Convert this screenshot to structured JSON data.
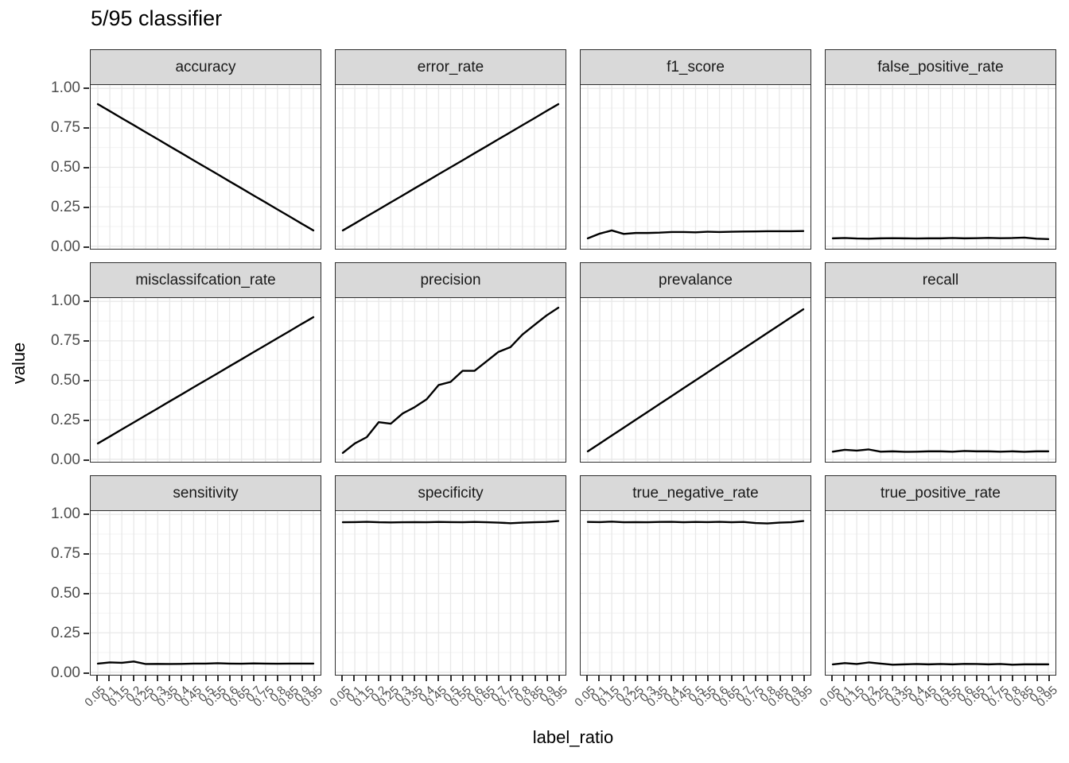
{
  "title": "5/95 classifier",
  "axes": {
    "x_label": "label_ratio",
    "y_label": "value",
    "x_tick_labels": [
      "0.05",
      "0.1",
      "0.15",
      "0.2",
      "0.25",
      "0.3",
      "0.35",
      "0.4",
      "0.45",
      "0.5",
      "0.55",
      "0.6",
      "0.65",
      "0.7",
      "0.75",
      "0.8",
      "0.85",
      "0.9",
      "0.95"
    ],
    "y_tick_labels": [
      "1.00",
      "0.75",
      "0.50",
      "0.25",
      "0.00"
    ],
    "y_tick_values": [
      1,
      0.75,
      0.5,
      0.25,
      0
    ]
  },
  "colors": {
    "strip_fill": "#d9d9d9",
    "panel_border": "#2e2e2e",
    "grid_major": "#e8e8e8",
    "grid_minor": "#f3f3f3",
    "line": "#000000",
    "tick_label": "#4d4d4d",
    "tick_mark": "#2f2f2f"
  },
  "chart_data": {
    "type": "line",
    "title": "5/95 classifier",
    "xlabel": "label_ratio",
    "ylabel": "value",
    "ylim": [
      0,
      1
    ],
    "grid": true,
    "legend": "none",
    "layout": {
      "rows": 3,
      "cols": 4,
      "style": "faceted, shared axes, gray strip headers"
    },
    "x": [
      0.05,
      0.1,
      0.15,
      0.2,
      0.25,
      0.3,
      0.35,
      0.4,
      0.45,
      0.5,
      0.55,
      0.6,
      0.65,
      0.7,
      0.75,
      0.8,
      0.85,
      0.9,
      0.95
    ],
    "y_minor_gridlines": [
      0.125,
      0.375,
      0.625,
      0.875
    ],
    "facets": [
      {
        "label": "accuracy",
        "values": [
          0.9,
          0.856,
          0.811,
          0.767,
          0.722,
          0.678,
          0.633,
          0.589,
          0.544,
          0.5,
          0.456,
          0.411,
          0.367,
          0.322,
          0.278,
          0.233,
          0.189,
          0.144,
          0.1
        ]
      },
      {
        "label": "error_rate",
        "values": [
          0.1,
          0.144,
          0.189,
          0.233,
          0.278,
          0.322,
          0.367,
          0.411,
          0.456,
          0.5,
          0.544,
          0.589,
          0.633,
          0.678,
          0.722,
          0.767,
          0.811,
          0.856,
          0.9
        ]
      },
      {
        "label": "f1_score",
        "values": [
          0.05,
          0.08,
          0.1,
          0.078,
          0.084,
          0.084,
          0.086,
          0.09,
          0.09,
          0.088,
          0.092,
          0.09,
          0.092,
          0.093,
          0.094,
          0.095,
          0.095,
          0.095,
          0.096
        ]
      },
      {
        "label": "false_positive_rate",
        "values": [
          0.05,
          0.052,
          0.049,
          0.048,
          0.05,
          0.051,
          0.05,
          0.049,
          0.05,
          0.05,
          0.052,
          0.05,
          0.051,
          0.053,
          0.051,
          0.052,
          0.055,
          0.048,
          0.045
        ]
      },
      {
        "label": "misclassifcation_rate",
        "values": [
          0.1,
          0.144,
          0.189,
          0.233,
          0.278,
          0.322,
          0.367,
          0.411,
          0.456,
          0.5,
          0.544,
          0.589,
          0.633,
          0.678,
          0.722,
          0.767,
          0.811,
          0.856,
          0.9
        ]
      },
      {
        "label": "precision",
        "values": [
          0.04,
          0.1,
          0.14,
          0.235,
          0.225,
          0.29,
          0.33,
          0.38,
          0.47,
          0.49,
          0.56,
          0.56,
          0.62,
          0.68,
          0.71,
          0.79,
          0.85,
          0.91,
          0.96
        ]
      },
      {
        "label": "prevalance",
        "values": [
          0.05,
          0.1,
          0.15,
          0.2,
          0.25,
          0.3,
          0.35,
          0.4,
          0.45,
          0.5,
          0.55,
          0.6,
          0.65,
          0.7,
          0.75,
          0.8,
          0.85,
          0.9,
          0.95
        ]
      },
      {
        "label": "recall",
        "values": [
          0.048,
          0.06,
          0.055,
          0.062,
          0.048,
          0.05,
          0.047,
          0.048,
          0.05,
          0.05,
          0.048,
          0.052,
          0.05,
          0.05,
          0.048,
          0.05,
          0.047,
          0.05,
          0.05
        ]
      },
      {
        "label": "sensitivity",
        "values": [
          0.055,
          0.062,
          0.06,
          0.068,
          0.052,
          0.053,
          0.052,
          0.053,
          0.055,
          0.055,
          0.057,
          0.055,
          0.054,
          0.056,
          0.055,
          0.054,
          0.055,
          0.055,
          0.055
        ]
      },
      {
        "label": "specificity",
        "values": [
          0.95,
          0.951,
          0.953,
          0.95,
          0.949,
          0.95,
          0.951,
          0.95,
          0.952,
          0.951,
          0.95,
          0.952,
          0.95,
          0.948,
          0.944,
          0.948,
          0.95,
          0.952,
          0.958
        ]
      },
      {
        "label": "true_negative_rate",
        "values": [
          0.952,
          0.951,
          0.954,
          0.95,
          0.951,
          0.95,
          0.952,
          0.953,
          0.95,
          0.952,
          0.951,
          0.953,
          0.95,
          0.952,
          0.945,
          0.943,
          0.948,
          0.95,
          0.958
        ]
      },
      {
        "label": "true_positive_rate",
        "values": [
          0.05,
          0.058,
          0.052,
          0.062,
          0.055,
          0.048,
          0.05,
          0.052,
          0.05,
          0.052,
          0.05,
          0.053,
          0.052,
          0.05,
          0.052,
          0.048,
          0.05,
          0.05,
          0.05
        ]
      }
    ]
  }
}
